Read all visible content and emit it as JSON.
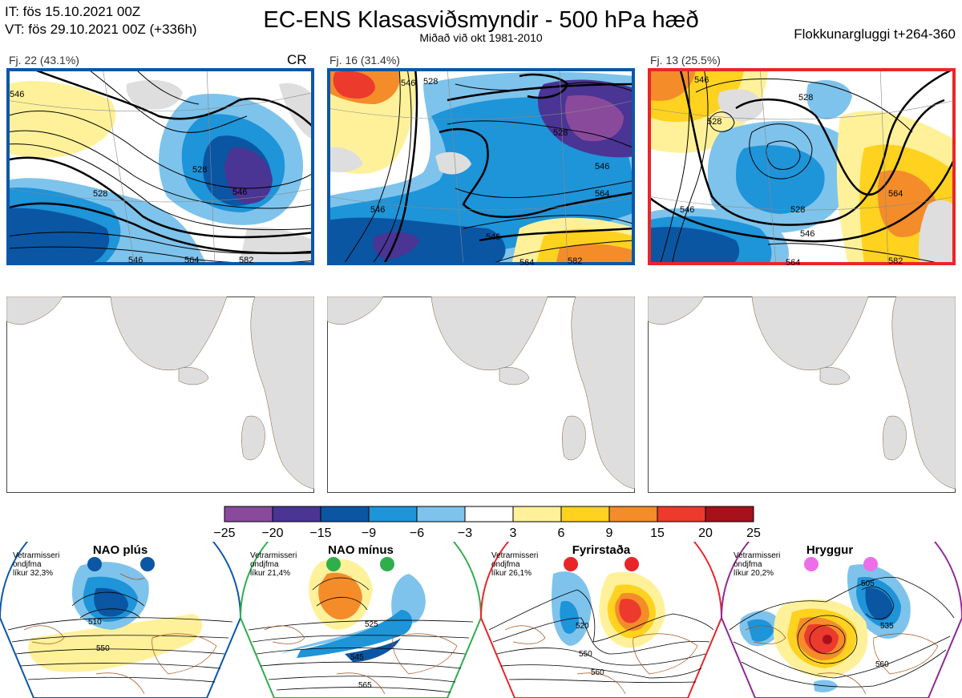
{
  "header": {
    "it_line": "IT: fös 15.10.2021 00Z",
    "vt_line": "VT: fös 29.10.2021 00Z  (+336h)",
    "title": "EC-ENS Klasasviðsmyndir - 500 hPa hæð",
    "subtitle": "Miðað við okt 1981-2010",
    "window": "Flokkunargluggi t+264-360"
  },
  "clusters": [
    {
      "label": "Fj. 22 (43.1%)",
      "badge": "CR",
      "frame_color": "#0b57a6",
      "contours": [
        "546",
        "528",
        "528",
        "546",
        "546",
        "564",
        "582"
      ]
    },
    {
      "label": "Fj. 16 (31.4%)",
      "badge": "",
      "frame_color": "#0b57a6",
      "contours": [
        "546",
        "546",
        "528",
        "528",
        "546",
        "564",
        "546",
        "564",
        "582"
      ]
    },
    {
      "label": "Fj. 13 (25.5%)",
      "badge": "",
      "frame_color": "#e8262a",
      "contours": [
        "546",
        "528",
        "528",
        "528",
        "546",
        "564",
        "546",
        "564",
        "582"
      ]
    }
  ],
  "colorbar": {
    "ticks": [
      "−25",
      "−20",
      "−15",
      "−9",
      "−6",
      "−3",
      "3",
      "6",
      "9",
      "15",
      "20",
      "25"
    ],
    "colors": [
      "#8a4a9c",
      "#4a3494",
      "#0a56a3",
      "#1e94d9",
      "#7ec3ec",
      "#ffffff",
      "#fff19a",
      "#ffd21f",
      "#f48c2a",
      "#ec3a2c",
      "#a6111b"
    ]
  },
  "regimes": [
    {
      "name": "NAO plús",
      "note1": "Vetrarmisseri",
      "note2": "ondjfma",
      "note3": "líkur 32,3%",
      "color": "#0b57a6",
      "dot": "#0b57a6",
      "contours": [
        "510",
        "550"
      ]
    },
    {
      "name": "NAO mínus",
      "note1": "Vetrarmisseri",
      "note2": "ondjfma",
      "note3": "líkur 21,4%",
      "color": "#2fae4c",
      "dot": "#2fae4c",
      "contours": [
        "525",
        "545",
        "565"
      ]
    },
    {
      "name": "Fyrirstaða",
      "note1": "Vetrarmisseri",
      "note2": "ondjfma",
      "note3": "líkur 26,1%",
      "color": "#e8262a",
      "dot": "#e8262a",
      "contours": [
        "520",
        "550",
        "560"
      ]
    },
    {
      "name": "Hryggur",
      "note1": "Vetrarmisseri",
      "note2": "ondjfma",
      "note3": "líkur 20,2%",
      "color": "#8e2a94",
      "dot": "#ee6ee8",
      "contours": [
        "505",
        "535",
        "560"
      ]
    }
  ]
}
